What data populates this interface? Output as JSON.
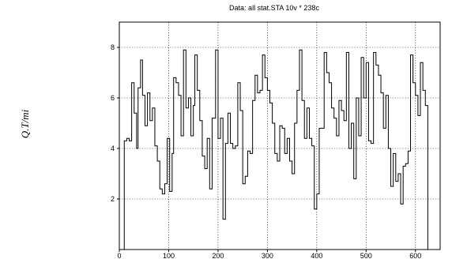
{
  "chart_data": {
    "type": "line",
    "title": "Data: all stat.STA 10v * 238c",
    "ylabel": "Q.T/mi",
    "xlabel": "",
    "xlim": [
      0,
      650
    ],
    "ylim": [
      0,
      9
    ],
    "x_ticks": [
      0,
      100,
      200,
      300,
      400,
      500,
      600
    ],
    "y_ticks": [
      2,
      4,
      6,
      8
    ],
    "grid": true,
    "step": true,
    "series": [
      {
        "points": [
          [
            10,
            0
          ],
          [
            10,
            4.3
          ],
          [
            15,
            4.4
          ],
          [
            20,
            4.3
          ],
          [
            25,
            6.6
          ],
          [
            30,
            5.4
          ],
          [
            35,
            4.0
          ],
          [
            38,
            6.4
          ],
          [
            43,
            7.5
          ],
          [
            47,
            6.1
          ],
          [
            52,
            4.9
          ],
          [
            57,
            6.2
          ],
          [
            62,
            5.1
          ],
          [
            67,
            5.6
          ],
          [
            72,
            4.1
          ],
          [
            77,
            3.5
          ],
          [
            82,
            2.4
          ],
          [
            87,
            2.2
          ],
          [
            92,
            2.6
          ],
          [
            97,
            4.4
          ],
          [
            102,
            2.3
          ],
          [
            107,
            3.8
          ],
          [
            110,
            6.8
          ],
          [
            115,
            6.6
          ],
          [
            120,
            6.1
          ],
          [
            125,
            4.5
          ],
          [
            130,
            7.9
          ],
          [
            135,
            5.6
          ],
          [
            140,
            6.0
          ],
          [
            145,
            4.5
          ],
          [
            150,
            5.7
          ],
          [
            153,
            7.7
          ],
          [
            158,
            6.3
          ],
          [
            163,
            5.1
          ],
          [
            168,
            3.7
          ],
          [
            173,
            3.2
          ],
          [
            178,
            4.4
          ],
          [
            183,
            2.4
          ],
          [
            188,
            5.2
          ],
          [
            195,
            7.9
          ],
          [
            200,
            4.4
          ],
          [
            205,
            5.2
          ],
          [
            210,
            1.2
          ],
          [
            215,
            4.2
          ],
          [
            220,
            5.4
          ],
          [
            225,
            4.2
          ],
          [
            230,
            4.0
          ],
          [
            235,
            4.1
          ],
          [
            240,
            6.6
          ],
          [
            245,
            5.5
          ],
          [
            250,
            2.6
          ],
          [
            255,
            2.9
          ],
          [
            260,
            3.9
          ],
          [
            265,
            3.8
          ],
          [
            270,
            5.9
          ],
          [
            275,
            6.9
          ],
          [
            280,
            6.2
          ],
          [
            285,
            6.3
          ],
          [
            290,
            7.7
          ],
          [
            295,
            6.8
          ],
          [
            300,
            6.3
          ],
          [
            305,
            5.8
          ],
          [
            310,
            5.0
          ],
          [
            315,
            3.8
          ],
          [
            320,
            3.5
          ],
          [
            325,
            4.9
          ],
          [
            330,
            4.8
          ],
          [
            335,
            3.8
          ],
          [
            340,
            4.4
          ],
          [
            345,
            3.5
          ],
          [
            350,
            3.0
          ],
          [
            355,
            5.0
          ],
          [
            360,
            6.3
          ],
          [
            365,
            7.9
          ],
          [
            370,
            5.9
          ],
          [
            375,
            4.4
          ],
          [
            380,
            5.6
          ],
          [
            385,
            4.4
          ],
          [
            390,
            4.1
          ],
          [
            395,
            1.6
          ],
          [
            400,
            2.2
          ],
          [
            405,
            4.8
          ],
          [
            410,
            4.8
          ],
          [
            415,
            7.8
          ],
          [
            420,
            7.0
          ],
          [
            425,
            6.6
          ],
          [
            430,
            5.6
          ],
          [
            435,
            5.2
          ],
          [
            440,
            4.5
          ],
          [
            445,
            5.9
          ],
          [
            450,
            5.5
          ],
          [
            455,
            5.1
          ],
          [
            460,
            7.8
          ],
          [
            465,
            4.0
          ],
          [
            470,
            5.0
          ],
          [
            475,
            2.8
          ],
          [
            480,
            6.0
          ],
          [
            485,
            4.5
          ],
          [
            490,
            7.6
          ],
          [
            495,
            6.0
          ],
          [
            500,
            7.4
          ],
          [
            505,
            4.3
          ],
          [
            510,
            4.2
          ],
          [
            515,
            7.8
          ],
          [
            520,
            7.3
          ],
          [
            525,
            6.9
          ],
          [
            530,
            6.2
          ],
          [
            535,
            4.8
          ],
          [
            540,
            6.1
          ],
          [
            545,
            4.0
          ],
          [
            550,
            2.5
          ],
          [
            555,
            3.8
          ],
          [
            560,
            2.7
          ],
          [
            565,
            3.0
          ],
          [
            570,
            1.8
          ],
          [
            575,
            3.3
          ],
          [
            580,
            3.4
          ],
          [
            585,
            3.9
          ],
          [
            590,
            7.7
          ],
          [
            595,
            6.6
          ],
          [
            600,
            6.1
          ],
          [
            605,
            5.3
          ],
          [
            610,
            7.4
          ],
          [
            615,
            6.3
          ],
          [
            620,
            5.7
          ],
          [
            625,
            0
          ]
        ]
      }
    ]
  }
}
